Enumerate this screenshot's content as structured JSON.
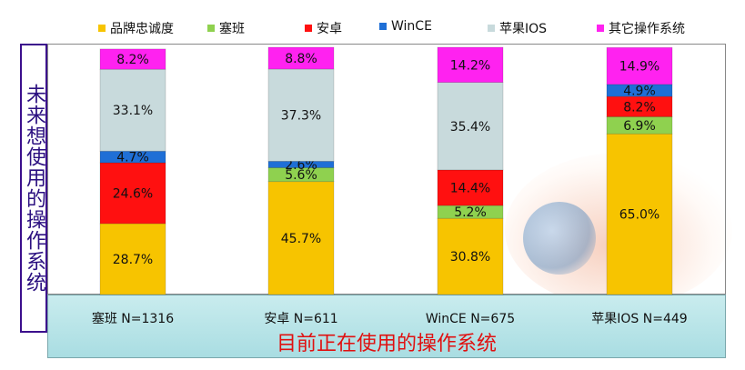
{
  "chart_data": {
    "type": "bar",
    "stacked": true,
    "orientation": "vertical",
    "title": "",
    "xlabel": "目前正在使用的操作系统",
    "ylabel": "未来想使用的操作系统",
    "ylim": [
      0,
      100
    ],
    "legend_position": "top",
    "grid": false,
    "categories": [
      "塞班 N=1316",
      "安卓 N=611",
      "WinCE N=675",
      "苹果IOS N=449"
    ],
    "series": [
      {
        "name": "品牌忠诚度",
        "color": "#f7c400",
        "values": [
          28.7,
          45.7,
          30.8,
          65.0
        ],
        "labels": [
          "28.7%",
          "45.7%",
          "30.8%",
          "65.0%"
        ]
      },
      {
        "name": "塞班",
        "color": "#8fd14f",
        "values": [
          0,
          5.6,
          5.2,
          6.9
        ],
        "labels": [
          "",
          "5.6%",
          "5.2%",
          "6.9%"
        ]
      },
      {
        "name": "安卓",
        "color": "#ff1010",
        "values": [
          24.6,
          0,
          14.4,
          8.2
        ],
        "labels": [
          "24.6%",
          "",
          "14.4%",
          "8.2%"
        ]
      },
      {
        "name": "WinCE",
        "color": "#1f6fd6",
        "values": [
          4.7,
          2.6,
          0,
          4.9
        ],
        "labels": [
          "4.7%",
          "2.6%",
          "",
          "4.9%"
        ]
      },
      {
        "name": "苹果IOS",
        "color": "#c8dadc",
        "values": [
          33.1,
          37.3,
          35.4,
          0
        ],
        "labels": [
          "33.1%",
          "37.3%",
          "35.4%",
          ""
        ]
      },
      {
        "name": "其它操作系统",
        "color": "#ff22f0",
        "values": [
          8.2,
          8.8,
          14.2,
          14.9
        ],
        "labels": [
          "8.2%",
          "8.8%",
          "14.2%",
          "14.9%"
        ]
      }
    ]
  }
}
